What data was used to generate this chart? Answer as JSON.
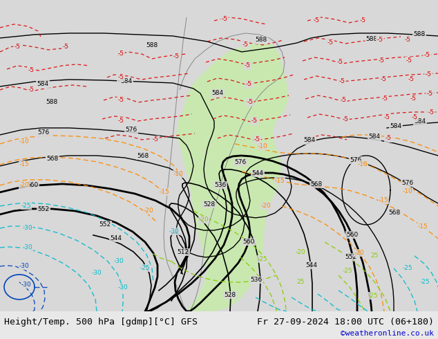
{
  "title_left": "Height/Temp. 500 hPa [gdmp][°C] GFS",
  "title_right": "Fr 27-09-2024 18:00 UTC (06+180)",
  "credit": "©weatheronline.co.uk",
  "bg_color": "#e8e8e8",
  "map_bg_color": "#e0e0e0",
  "ocean_color": "#d8d8d8",
  "land_color": "#e0e0e0",
  "green_fill": "#c8e8b0",
  "figsize": [
    6.34,
    4.9
  ],
  "dpi": 100,
  "bottom_bar_color": "#e8e8e8",
  "bottom_bar_height": 0.082,
  "title_fontsize": 9.5,
  "credit_fontsize": 8,
  "credit_color": "#0000cc",
  "red_col": "#dd0000",
  "orange_col": "#ff8800",
  "green_col": "#88cc00",
  "cyan_col": "#00bbcc",
  "blue_col": "#0044bb",
  "black_col": "#000000"
}
